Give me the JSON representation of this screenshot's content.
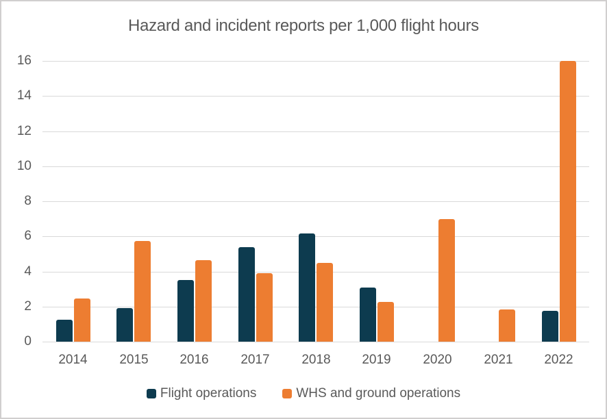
{
  "chart_data": {
    "type": "bar",
    "title": "Hazard and incident reports per 1,000 flight hours",
    "categories": [
      "2014",
      "2015",
      "2016",
      "2017",
      "2018",
      "2019",
      "2020",
      "2021",
      "2022"
    ],
    "series": [
      {
        "name": "Flight operations",
        "color": "#0d3b4f",
        "values": [
          1.25,
          1.9,
          3.5,
          5.4,
          6.15,
          3.1,
          0,
          0,
          1.75
        ]
      },
      {
        "name": "WHS and ground operations",
        "color": "#ed7d31",
        "values": [
          2.45,
          5.75,
          4.65,
          3.9,
          4.5,
          2.25,
          7.0,
          1.85,
          16.0
        ]
      }
    ],
    "xlabel": "",
    "ylabel": "",
    "ylim": [
      0,
      16
    ],
    "yticks": [
      0,
      2,
      4,
      6,
      8,
      10,
      12,
      14,
      16
    ],
    "grid": true,
    "legend_position": "bottom"
  }
}
